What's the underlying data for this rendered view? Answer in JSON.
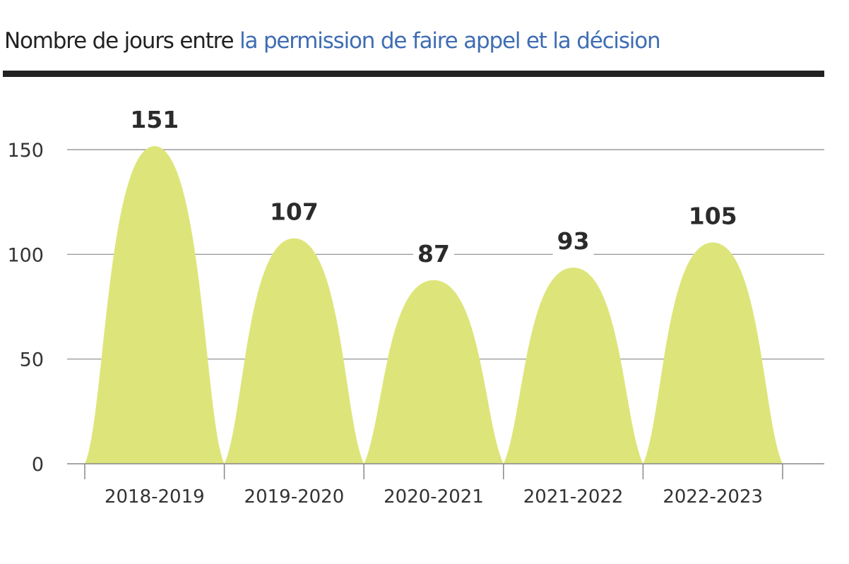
{
  "chart_data": {
    "type": "area",
    "title_prefix": "Nombre de jours entre ",
    "title_highlight": "la permission de faire appel et la décision",
    "categories": [
      "2018-2019",
      "2019-2020",
      "2020-2021",
      "2021-2022",
      "2022-2023"
    ],
    "values": [
      151,
      107,
      87,
      93,
      105
    ],
    "value_labels": [
      "151",
      "107",
      "87",
      "93",
      "105"
    ],
    "y_ticks": [
      0,
      50,
      100,
      150
    ],
    "ylim": [
      0,
      150
    ],
    "grid": true,
    "xlabel": "",
    "ylabel": "",
    "colors": {
      "fill": "#dde57a",
      "title_accent": "#3f6db3",
      "text": "#222222",
      "grid": "#888888"
    }
  }
}
